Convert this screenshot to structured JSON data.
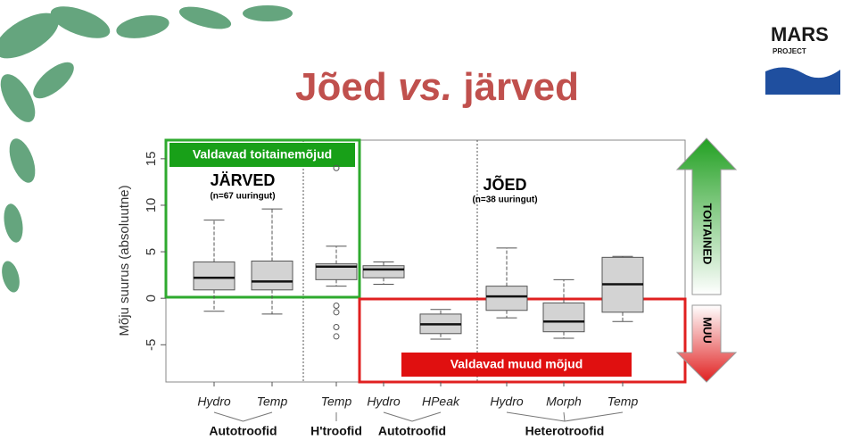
{
  "logo": {
    "name": "MARS",
    "sub": "PROJECT"
  },
  "chart_data": {
    "type": "box",
    "title": [
      "Jõed",
      "vs.",
      "järved"
    ],
    "ylabel": "Mõju suurus (absoluutne)",
    "ylim": [
      -9,
      17
    ],
    "yticks": [
      -5,
      0,
      5,
      10,
      15
    ],
    "categories": [
      "Hydro",
      "Temp",
      "Temp",
      "Hydro",
      "HPeak",
      "Hydro",
      "Morph",
      "Temp"
    ],
    "groups": [
      "Autotroofid",
      "H'troofid",
      "Autotroofid",
      "Heterotroofid"
    ],
    "color": "#d3d3d3",
    "boxes": [
      {
        "whisker_low": -1.4,
        "q1": 0.9,
        "median": 2.2,
        "q3": 3.9,
        "whisker_high": 8.4
      },
      {
        "whisker_low": -1.7,
        "q1": 0.9,
        "median": 1.8,
        "q3": 4.0,
        "whisker_high": 9.6
      },
      {
        "whisker_low": 1.3,
        "q1": 2.0,
        "median": 3.4,
        "q3": 3.7,
        "whisker_high": 5.6,
        "outliers": [
          14,
          -0.8,
          -1.5,
          -3.1,
          -4.1
        ]
      },
      {
        "whisker_low": 1.5,
        "q1": 2.2,
        "median": 3.1,
        "q3": 3.5,
        "whisker_high": 3.9
      },
      {
        "whisker_low": -4.4,
        "q1": -3.8,
        "median": -2.8,
        "q3": -1.7,
        "whisker_high": -1.2
      },
      {
        "whisker_low": -2.1,
        "q1": -1.3,
        "median": 0.2,
        "q3": 1.3,
        "whisker_high": 5.4
      },
      {
        "whisker_low": -4.3,
        "q1": -3.6,
        "median": -2.5,
        "q3": -0.5,
        "whisker_high": 2.0
      },
      {
        "whisker_low": -2.5,
        "q1": -1.5,
        "median": 1.5,
        "q3": 4.4,
        "whisker_high": 4.5
      }
    ],
    "annotations": [
      "Valdavad toitainemõjud",
      "Valdavad muud mõjud",
      "JÄRVED",
      "(n=67 uuringut)",
      "JÕED",
      "(n=38 uuringut)",
      "TOITAINED",
      "MUU"
    ]
  }
}
